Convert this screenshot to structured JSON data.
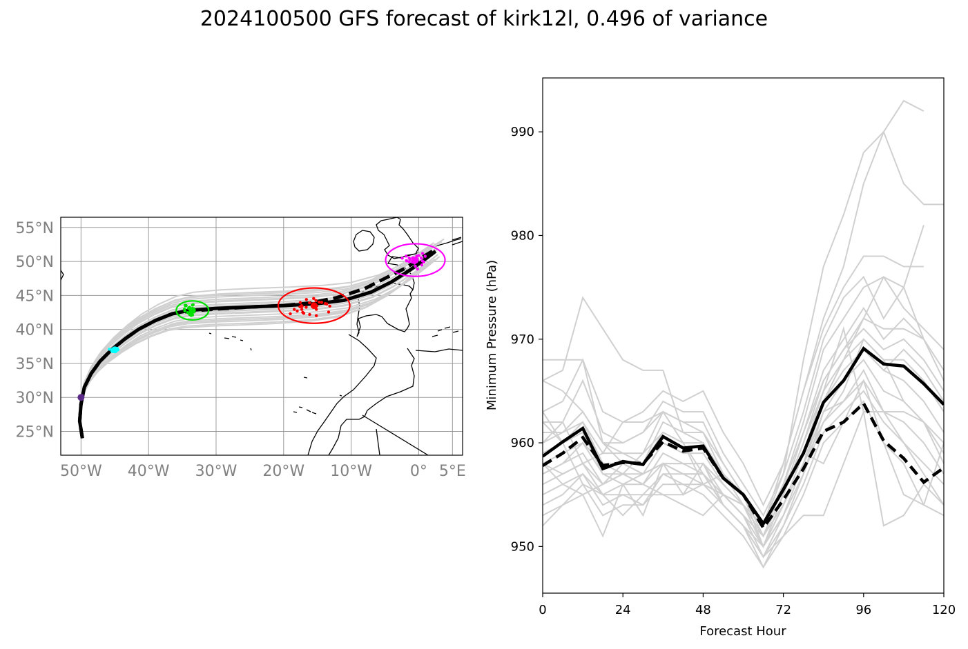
{
  "figure": {
    "title": "2024100500 GFS forecast of kirk12l, 0.496 of variance"
  },
  "chart_data": [
    {
      "type": "map",
      "name": "track-map",
      "lon_range": [
        -53,
        6.5
      ],
      "lat_range": [
        21.5,
        56.5
      ],
      "grid": true,
      "lon_ticks": [
        {
          "value": -50,
          "label": "50°W"
        },
        {
          "value": -40,
          "label": "40°W"
        },
        {
          "value": -30,
          "label": "30°W"
        },
        {
          "value": -20,
          "label": "20°W"
        },
        {
          "value": -10,
          "label": "10°W"
        },
        {
          "value": 0,
          "label": "0°"
        },
        {
          "value": 5,
          "label": "5°E"
        }
      ],
      "lat_ticks": [
        {
          "value": 25,
          "label": "25°N"
        },
        {
          "value": 30,
          "label": "30°N"
        },
        {
          "value": 35,
          "label": "35°N"
        },
        {
          "value": 40,
          "label": "40°N"
        },
        {
          "value": 45,
          "label": "45°N"
        },
        {
          "value": 50,
          "label": "50°N"
        },
        {
          "value": 55,
          "label": "55°N"
        }
      ],
      "mean_track": [
        [
          -49.8,
          24.0
        ],
        [
          -50.2,
          26.5
        ],
        [
          -50.0,
          29.0
        ],
        [
          -49.5,
          31.5
        ],
        [
          -48.5,
          33.5
        ],
        [
          -47.2,
          35.3
        ],
        [
          -45.5,
          37.0
        ],
        [
          -43.5,
          38.6
        ],
        [
          -41.5,
          40.0
        ],
        [
          -39.0,
          41.3
        ],
        [
          -36.5,
          42.3
        ],
        [
          -34.0,
          42.8
        ],
        [
          -30.0,
          43.1
        ],
        [
          -25.0,
          43.3
        ],
        [
          -20.0,
          43.5
        ],
        [
          -15.0,
          43.8
        ],
        [
          -11.0,
          44.3
        ],
        [
          -7.0,
          45.5
        ],
        [
          -4.0,
          47.0
        ],
        [
          -1.5,
          48.6
        ],
        [
          0.5,
          50.0
        ],
        [
          2.5,
          51.5
        ]
      ],
      "control_track": [
        [
          -49.8,
          24.0
        ],
        [
          -50.2,
          26.5
        ],
        [
          -50.0,
          29.0
        ],
        [
          -49.5,
          31.5
        ],
        [
          -48.5,
          33.5
        ],
        [
          -47.2,
          35.3
        ],
        [
          -45.5,
          37.0
        ],
        [
          -43.5,
          38.6
        ],
        [
          -41.5,
          40.0
        ],
        [
          -39.0,
          41.3
        ],
        [
          -36.5,
          42.3
        ],
        [
          -34.0,
          42.7
        ],
        [
          -30.0,
          43.0
        ],
        [
          -25.0,
          43.3
        ],
        [
          -20.0,
          43.5
        ],
        [
          -16.0,
          43.9
        ],
        [
          -12.0,
          44.7
        ],
        [
          -8.0,
          46.0
        ],
        [
          -5.0,
          47.5
        ],
        [
          -2.0,
          49.0
        ],
        [
          0.5,
          50.6
        ],
        [
          2.5,
          51.8
        ]
      ],
      "member_offsets": [
        -2.2,
        -1.7,
        -1.3,
        -1.0,
        -0.7,
        -0.4,
        -0.2,
        0.2,
        0.5,
        0.8,
        1.1,
        1.4,
        1.8,
        2.3,
        -1.5,
        0.9,
        -0.6,
        1.6,
        -2.0,
        0.3
      ],
      "position_clusters": [
        {
          "hour": 0,
          "color": "#5b2a86",
          "center": [
            -50.0,
            30.0
          ],
          "spread": [
            0.4,
            0.4
          ],
          "n": 10,
          "ellipse": null
        },
        {
          "hour": 24,
          "color": "#00ffff",
          "center": [
            -45.0,
            37.0
          ],
          "spread": [
            0.8,
            0.4
          ],
          "n": 14,
          "ellipse": null
        },
        {
          "hour": 48,
          "color": "#00e000",
          "center": [
            -33.5,
            42.8
          ],
          "spread": [
            2.0,
            1.2
          ],
          "n": 20,
          "ellipse": [
            2.4,
            1.4
          ]
        },
        {
          "hour": 72,
          "color": "#ff0000",
          "center": [
            -15.5,
            43.5
          ],
          "spread": [
            4.5,
            1.9
          ],
          "n": 26,
          "ellipse": [
            5.3,
            2.6
          ]
        },
        {
          "hour": 96,
          "color": "#ff00ff",
          "center": [
            -0.5,
            50.2
          ],
          "spread": [
            3.0,
            1.7
          ],
          "n": 22,
          "ellipse": [
            4.4,
            2.4
          ]
        }
      ]
    },
    {
      "type": "line",
      "name": "minimum-pressure",
      "xlabel": "Forecast Hour",
      "ylabel": "Minimum Pressure (hPa)",
      "xlim": [
        0,
        120
      ],
      "ylim": [
        945.5,
        995.2
      ],
      "xticks": [
        0,
        24,
        48,
        72,
        96,
        120
      ],
      "yticks": [
        950,
        960,
        970,
        980,
        990
      ],
      "x": [
        0,
        6,
        12,
        18,
        24,
        30,
        36,
        42,
        48,
        54,
        60,
        66,
        72,
        78,
        84,
        90,
        96,
        102,
        108,
        114,
        120
      ],
      "series": [
        {
          "role": "mean",
          "style": "solid",
          "values": [
            958.7,
            960.1,
            961.4,
            957.5,
            958.2,
            957.9,
            960.6,
            959.5,
            959.7,
            956.6,
            955.0,
            952.2,
            955.5,
            959.0,
            963.9,
            966.0,
            969.1,
            967.6,
            967.4,
            965.7,
            963.7
          ]
        },
        {
          "role": "control",
          "style": "dashed",
          "values": [
            957.8,
            959.0,
            960.5,
            957.8,
            958.1,
            958.0,
            960.1,
            959.2,
            959.5,
            956.6,
            955.0,
            951.8,
            954.5,
            957.5,
            961.1,
            962.0,
            963.8,
            960.2,
            958.5,
            956.2,
            957.6
          ]
        },
        {
          "role": "member",
          "values": [
            968,
            968,
            968,
            960,
            958,
            957,
            958,
            957,
            956,
            955,
            954,
            952,
            958,
            965,
            972,
            977,
            985,
            990,
            993,
            992,
            null
          ]
        },
        {
          "role": "member",
          "values": [
            966,
            967,
            974,
            971,
            968,
            967,
            967,
            961,
            960,
            957,
            955,
            952,
            957,
            968,
            977,
            982,
            988,
            990,
            985,
            983,
            983
          ]
        },
        {
          "role": "member",
          "values": [
            963,
            964,
            968,
            963,
            962,
            963,
            965,
            964,
            965,
            961,
            958,
            954,
            958,
            965,
            971,
            975,
            978,
            978,
            977,
            977,
            null
          ]
        },
        {
          "role": "member",
          "values": [
            962,
            962,
            966,
            961,
            960,
            961,
            964,
            963,
            963,
            959,
            956,
            953,
            957,
            963,
            970,
            974,
            976,
            972,
            975,
            981,
            null
          ]
        },
        {
          "role": "member",
          "values": [
            961,
            961,
            963,
            960,
            959,
            959,
            963,
            962,
            962,
            958,
            955,
            952,
            956,
            962,
            969,
            972,
            975,
            976,
            973,
            971,
            969
          ]
        },
        {
          "role": "member",
          "values": [
            960,
            961,
            962,
            959,
            959,
            958,
            962,
            961,
            961,
            957,
            955,
            951,
            955,
            961,
            967,
            970,
            973,
            970,
            972,
            970,
            966
          ]
        },
        {
          "role": "member",
          "values": [
            959,
            960,
            962,
            958,
            958,
            958,
            961,
            960,
            960,
            957,
            954,
            951,
            955,
            960,
            966,
            969,
            971,
            969,
            970,
            968,
            965
          ]
        },
        {
          "role": "member",
          "values": [
            958,
            959,
            960,
            957,
            957,
            957,
            960,
            959,
            959,
            956,
            954,
            950,
            954,
            959,
            965,
            968,
            970,
            968,
            968,
            966,
            963
          ]
        },
        {
          "role": "member",
          "values": [
            957,
            958,
            959,
            956,
            957,
            956,
            959,
            958,
            958,
            955,
            953,
            950,
            953,
            958,
            964,
            967,
            969,
            967,
            966,
            964,
            961
          ]
        },
        {
          "role": "member",
          "values": [
            956,
            957,
            958,
            955,
            956,
            956,
            958,
            958,
            957,
            955,
            953,
            949,
            953,
            958,
            963,
            966,
            968,
            965,
            964,
            962,
            959
          ]
        },
        {
          "role": "member",
          "values": [
            955,
            956,
            957,
            955,
            955,
            955,
            957,
            957,
            957,
            954,
            952,
            949,
            952,
            957,
            962,
            964,
            967,
            963,
            962,
            960,
            957
          ]
        },
        {
          "role": "member",
          "values": [
            954,
            955,
            957,
            954,
            955,
            954,
            957,
            956,
            956,
            954,
            952,
            948,
            952,
            956,
            961,
            963,
            965,
            962,
            960,
            957,
            954
          ]
        },
        {
          "role": "member",
          "values": [
            953,
            954,
            956,
            953,
            954,
            954,
            956,
            956,
            955,
            953,
            951,
            948,
            951,
            955,
            960,
            962,
            964,
            960,
            958,
            954,
            953
          ]
        },
        {
          "role": "member",
          "values": [
            952,
            954,
            955,
            951,
            956,
            953,
            958,
            955,
            958,
            954,
            952,
            949,
            951,
            953,
            953,
            958,
            963,
            952,
            953,
            956,
            954
          ]
        },
        {
          "role": "member",
          "values": [
            963,
            960,
            956,
            955,
            953,
            955,
            955,
            954,
            953,
            955,
            953,
            950,
            955,
            960,
            965,
            971,
            963,
            963,
            963,
            962,
            960
          ]
        },
        {
          "role": "member",
          "values": [
            960,
            962,
            958,
            959,
            962,
            962,
            963,
            960,
            956,
            955,
            954,
            951,
            956,
            959,
            958,
            962,
            966,
            960,
            955,
            954,
            960
          ]
        },
        {
          "role": "member",
          "values": [
            958,
            956,
            955,
            956,
            957,
            956,
            955,
            955,
            956,
            957,
            955,
            950,
            954,
            958,
            964,
            968,
            972,
            976,
            975,
            970,
            null
          ]
        },
        {
          "role": "member",
          "values": [
            957,
            958,
            960,
            958,
            957,
            959,
            961,
            960,
            957,
            954,
            952,
            950,
            953,
            957,
            963,
            964,
            966,
            963,
            960,
            958,
            956
          ]
        },
        {
          "role": "member",
          "values": [
            962,
            960,
            961,
            957,
            956,
            957,
            958,
            957,
            957,
            955,
            953,
            951,
            954,
            958,
            962,
            965,
            970,
            968,
            964,
            962,
            958
          ]
        },
        {
          "role": "member",
          "values": [
            958,
            957,
            958,
            956,
            958,
            957,
            958,
            958,
            958,
            956,
            954,
            950,
            954,
            959,
            964,
            966,
            969,
            967,
            969,
            967,
            964
          ]
        },
        {
          "role": "member",
          "values": [
            966,
            965,
            963,
            960,
            960,
            961,
            963,
            962,
            961,
            958,
            955,
            952,
            956,
            961,
            966,
            969,
            972,
            971,
            971,
            970,
            967
          ]
        }
      ]
    }
  ]
}
